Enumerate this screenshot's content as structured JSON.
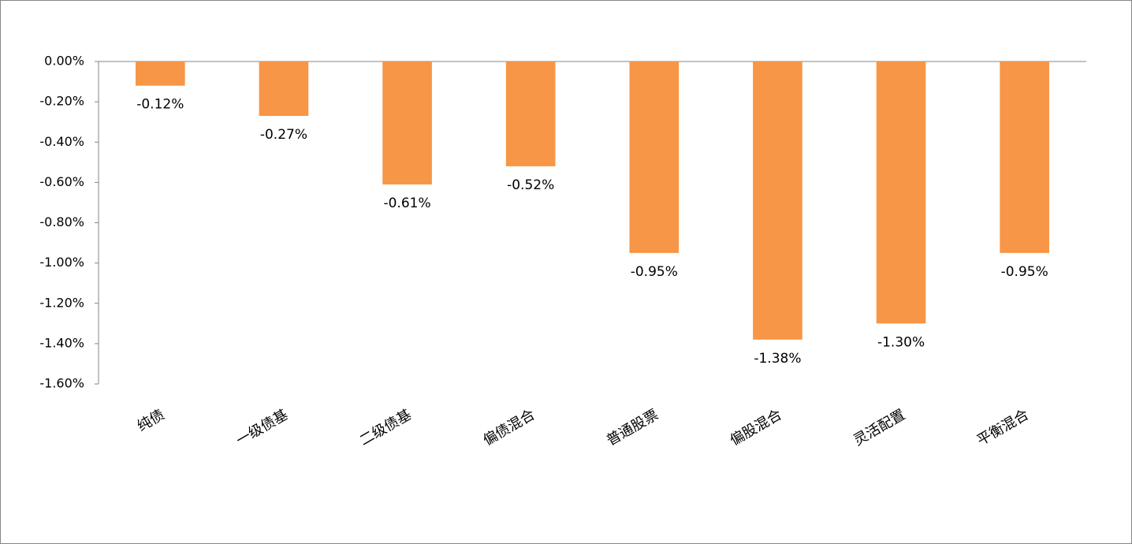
{
  "chart_data": {
    "type": "bar",
    "categories": [
      "纯债",
      "一级债基",
      "二级债基",
      "偏债混合",
      "普通股票",
      "偏股混合",
      "灵活配置",
      "平衡混合"
    ],
    "values": [
      -0.12,
      -0.27,
      -0.61,
      -0.52,
      -0.95,
      -1.38,
      -1.3,
      -0.95
    ],
    "value_labels": [
      "-0.12%",
      "-0.27%",
      "-0.61%",
      "-0.52%",
      "-0.95%",
      "-1.38%",
      "-1.30%",
      "-0.95%"
    ],
    "color": "#f79646",
    "ylim": [
      -1.6,
      0
    ],
    "yticks": [
      {
        "value": 0,
        "label": "0.00%"
      },
      {
        "value": -0.2,
        "label": "-0.20%"
      },
      {
        "value": -0.4,
        "label": "-0.40%"
      },
      {
        "value": -0.6,
        "label": "-0.60%"
      },
      {
        "value": -0.8,
        "label": "-0.80%"
      },
      {
        "value": -1.0,
        "label": "-1.00%"
      },
      {
        "value": -1.2,
        "label": "-1.20%"
      },
      {
        "value": -1.4,
        "label": "-1.40%"
      },
      {
        "value": -1.6,
        "label": "-1.60%"
      }
    ],
    "grid": false
  }
}
